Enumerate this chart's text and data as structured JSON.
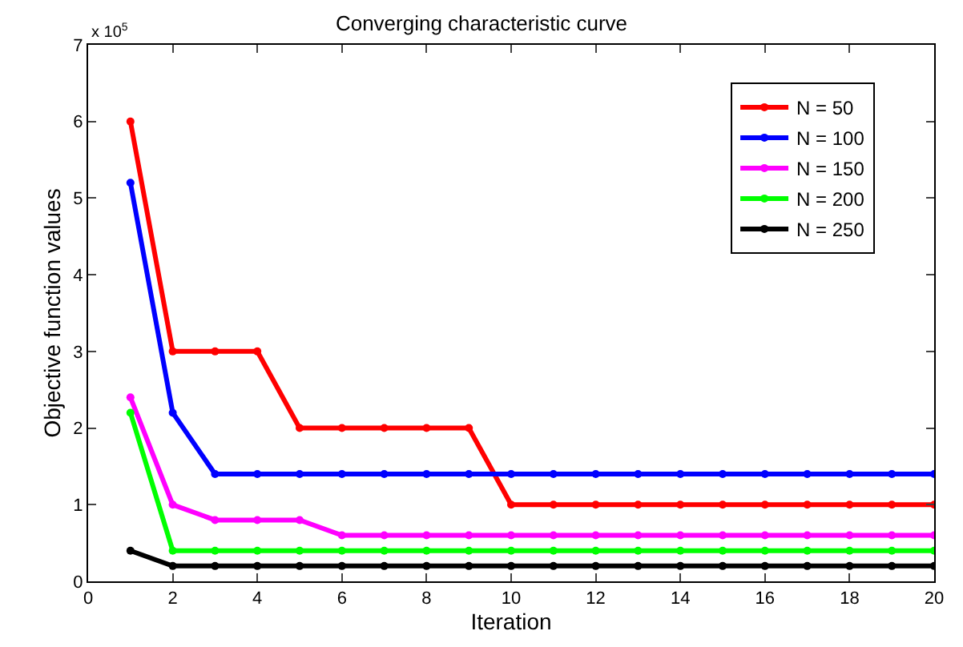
{
  "chart_data": {
    "type": "line",
    "title": "Converging characteristic curve",
    "xlabel": "Iteration",
    "ylabel": "Objective function values",
    "annotations": [
      "x 10$^{5}$"
    ],
    "x": [
      1,
      2,
      3,
      4,
      5,
      6,
      7,
      8,
      9,
      10,
      11,
      12,
      13,
      14,
      15,
      16,
      17,
      18,
      19,
      20
    ],
    "series": [
      {
        "name": "N = 50",
        "color": "#ff0000",
        "values": [
          6,
          3,
          3,
          3,
          2,
          2,
          2,
          2,
          2,
          1,
          1,
          1,
          1,
          1,
          1,
          1,
          1,
          1,
          1,
          1
        ]
      },
      {
        "name": "N = 100",
        "color": "#0000ff",
        "values": [
          5.2,
          2.2,
          1.4,
          1.4,
          1.4,
          1.4,
          1.4,
          1.4,
          1.4,
          1.4,
          1.4,
          1.4,
          1.4,
          1.4,
          1.4,
          1.4,
          1.4,
          1.4,
          1.4,
          1.4
        ]
      },
      {
        "name": "N = 150",
        "color": "#ff00ff",
        "values": [
          2.4,
          1.0,
          0.8,
          0.8,
          0.8,
          0.6,
          0.6,
          0.6,
          0.6,
          0.6,
          0.6,
          0.6,
          0.6,
          0.6,
          0.6,
          0.6,
          0.6,
          0.6,
          0.6,
          0.6
        ]
      },
      {
        "name": "N = 200",
        "color": "#00ff00",
        "values": [
          2.2,
          0.4,
          0.4,
          0.4,
          0.4,
          0.4,
          0.4,
          0.4,
          0.4,
          0.4,
          0.4,
          0.4,
          0.4,
          0.4,
          0.4,
          0.4,
          0.4,
          0.4,
          0.4,
          0.4
        ]
      },
      {
        "name": "N = 250",
        "color": "#000000",
        "values": [
          0.4,
          0.2,
          0.2,
          0.2,
          0.2,
          0.2,
          0.2,
          0.2,
          0.2,
          0.2,
          0.2,
          0.2,
          0.2,
          0.2,
          0.2,
          0.2,
          0.2,
          0.2,
          0.2,
          0.2
        ]
      }
    ],
    "xlim": [
      0,
      20
    ],
    "xticks": [
      0,
      2,
      4,
      6,
      8,
      10,
      12,
      14,
      16,
      18,
      20
    ],
    "ylim": [
      0,
      7
    ],
    "yticks": [
      0,
      1,
      2,
      3,
      4,
      5,
      6,
      7
    ],
    "legend": "top right",
    "marker": "circle",
    "line_style": "solid"
  }
}
